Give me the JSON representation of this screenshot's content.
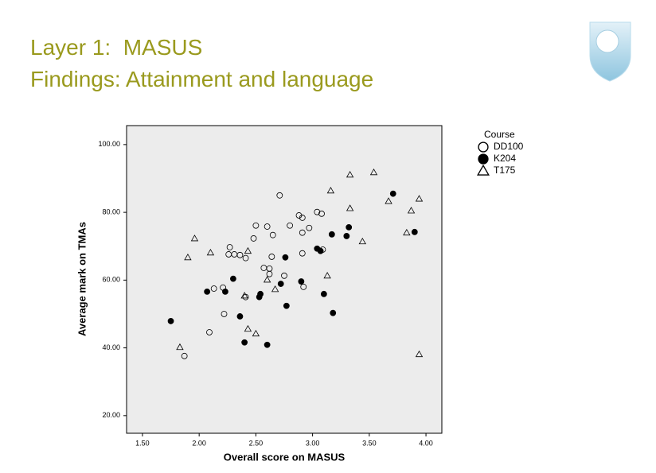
{
  "slide": {
    "title": [
      "Layer 1:  MASUS",
      "Findings: Attainment and language"
    ]
  },
  "chart_data": {
    "type": "scatter",
    "x_label": "Overall score on MASUS",
    "y_label": "Average mark on TMAs",
    "legend_title": "Course",
    "legend": "outside-top-right",
    "plot_background": "#ececec",
    "xlim": [
      1.36,
      4.14
    ],
    "xticks": [
      {
        "value": 1.5,
        "label": "1.50"
      },
      {
        "value": 2,
        "label": "2.00"
      },
      {
        "value": 2.5,
        "label": "2.50"
      },
      {
        "value": 3,
        "label": "3.00"
      },
      {
        "value": 3.5,
        "label": "3.50"
      },
      {
        "value": 4,
        "label": "4.00"
      }
    ],
    "ylim": [
      14.8,
      105.6
    ],
    "yticks": [
      {
        "value": 20,
        "label": "20.00"
      },
      {
        "value": 40,
        "label": "40.00"
      },
      {
        "value": 60,
        "label": "60.00"
      },
      {
        "value": 80,
        "label": "80.00"
      },
      {
        "value": 100,
        "label": "100.00"
      }
    ],
    "series": [
      {
        "name": "DD100",
        "color": "#000000",
        "marker": "circle-open",
        "x": [
          2.71,
          2.88,
          2.91,
          3.04,
          3.08,
          2.8,
          2.97,
          2.5,
          2.6,
          2.91,
          2.65,
          2.48,
          2.27,
          2.26,
          2.31,
          2.36,
          2.41,
          2.64,
          2.91,
          3.09,
          2.57,
          2.62,
          2.62,
          2.75,
          2.92,
          2.21,
          2.13,
          2.41,
          2.22,
          2.09,
          1.87
        ],
        "values": [
          85.0,
          79.1,
          78.4,
          80.1,
          79.6,
          76.1,
          75.4,
          76.1,
          75.8,
          74.0,
          73.3,
          72.3,
          69.7,
          67.6,
          67.6,
          67.4,
          66.5,
          66.9,
          67.9,
          69.0,
          63.6,
          63.4,
          61.8,
          61.3,
          58.0,
          57.8,
          57.5,
          55.0,
          50.0,
          44.6,
          37.6
        ]
      },
      {
        "name": "K204",
        "color": "#000000",
        "marker": "circle",
        "x": [
          3.71,
          3.9,
          3.32,
          3.3,
          3.17,
          3.04,
          3.07,
          2.76,
          2.3,
          2.9,
          2.72,
          2.07,
          2.23,
          2.54,
          2.53,
          3.1,
          2.77,
          2.36,
          3.18,
          1.75,
          2.4,
          2.6
        ],
        "values": [
          85.5,
          74.2,
          75.6,
          73.0,
          73.5,
          69.3,
          68.6,
          66.7,
          60.4,
          59.6,
          58.9,
          56.6,
          56.6,
          55.9,
          55.0,
          55.9,
          52.4,
          49.3,
          50.3,
          47.9,
          41.6,
          40.9
        ]
      },
      {
        "name": "T175",
        "color": "#000000",
        "marker": "triangle-open",
        "x": [
          3.54,
          3.33,
          3.16,
          3.94,
          3.67,
          3.33,
          3.87,
          3.83,
          3.44,
          1.96,
          2.1,
          1.9,
          2.43,
          3.13,
          2.6,
          2.67,
          2.4,
          2.43,
          2.5,
          1.83,
          3.94
        ],
        "values": [
          91.8,
          91.1,
          86.4,
          84.0,
          83.3,
          81.2,
          80.5,
          74.0,
          71.4,
          72.3,
          68.1,
          66.7,
          68.6,
          61.3,
          60.1,
          57.3,
          55.4,
          45.6,
          44.2,
          40.2,
          38.1
        ]
      }
    ]
  }
}
